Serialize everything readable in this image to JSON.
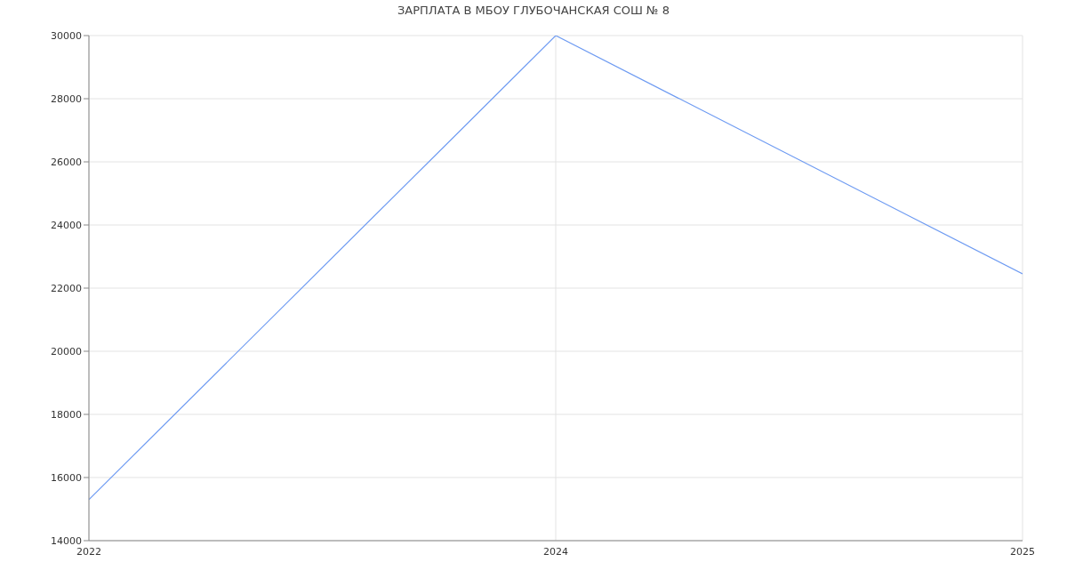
{
  "chart_data": {
    "type": "line",
    "title": "ЗАРПЛАТА В МБОУ ГЛУБОЧАНСКАЯ СОШ № 8",
    "categories": [
      "2022",
      "2024",
      "2025"
    ],
    "series": [
      {
        "color": "#6e9bf2",
        "values": [
          15300,
          30000,
          22450
        ]
      }
    ],
    "ylim": [
      14000,
      30000
    ],
    "yticks": [
      14000,
      16000,
      18000,
      20000,
      22000,
      24000,
      26000,
      28000,
      30000
    ],
    "grid": true,
    "marker": "none"
  }
}
